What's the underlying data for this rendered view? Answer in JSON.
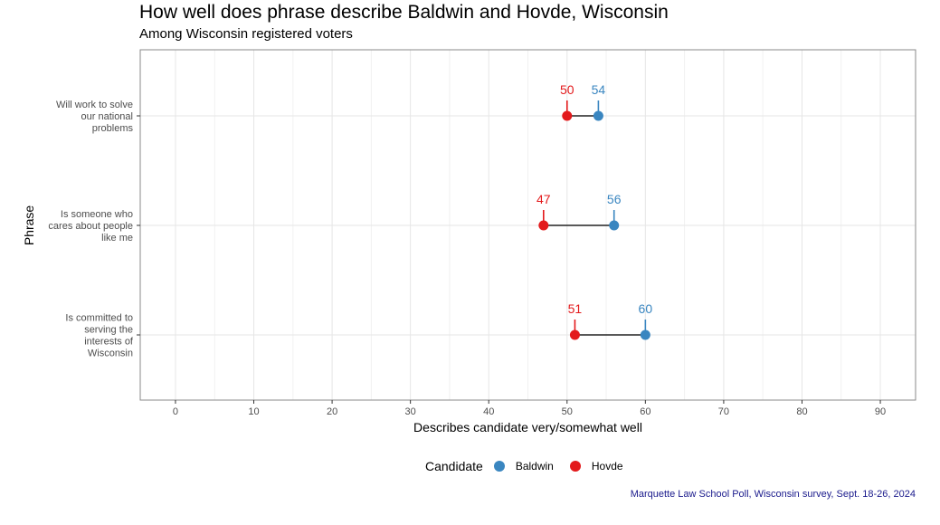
{
  "chart_data": {
    "type": "dumbbell",
    "title": "How well does phrase describe Baldwin and Hovde, Wisconsin",
    "subtitle": "Among Wisconsin registered voters",
    "xlabel": "Describes candidate very/somewhat well",
    "ylabel": "Phrase",
    "xlim": [
      -4.5,
      94.5
    ],
    "x_ticks": [
      0,
      10,
      20,
      30,
      40,
      50,
      60,
      70,
      80,
      90
    ],
    "grid": true,
    "legend_title": "Candidate",
    "legend_position": "bottom",
    "categories": [
      [
        "Will work to solve",
        "our national",
        "problems"
      ],
      [
        "Is someone who",
        "cares about people",
        "like me"
      ],
      [
        "Is committed to",
        "serving the",
        "interests of",
        "Wisconsin"
      ]
    ],
    "series": [
      {
        "name": "Baldwin",
        "color": "#3a86c0",
        "values": [
          54,
          56,
          60
        ]
      },
      {
        "name": "Hovde",
        "color": "#e31a1c",
        "values": [
          50,
          47,
          51
        ]
      }
    ],
    "caption": "Marquette Law School Poll, Wisconsin survey, Sept. 18-26, 2024"
  }
}
